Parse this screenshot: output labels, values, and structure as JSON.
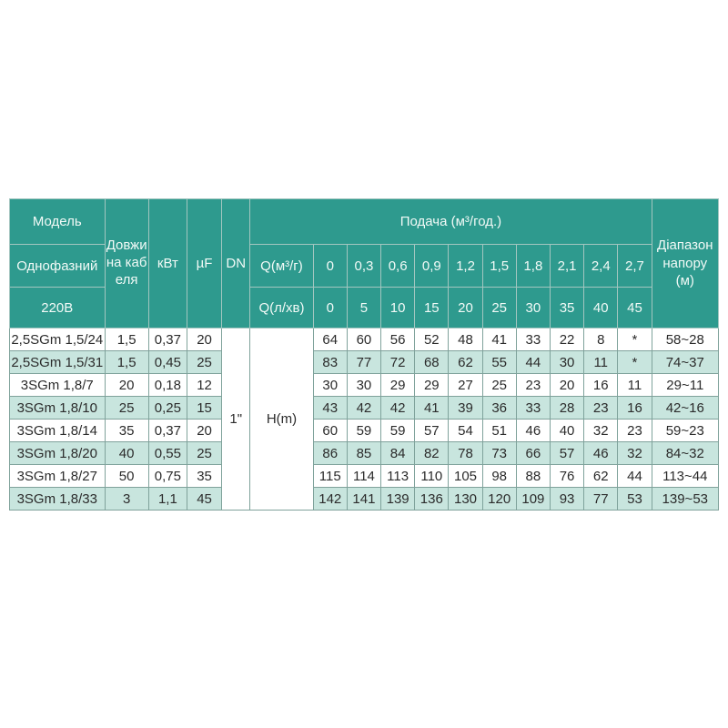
{
  "table": {
    "header": {
      "model_rows": [
        "Модель",
        "Однофазний",
        "220В"
      ],
      "cable_label": "Довжина кабеля",
      "kw_label": "кВт",
      "uf_label": "µF",
      "dn_label": "DN",
      "flow_title": "Подача (м³/год.)",
      "q_m3_label": "Q(м³/г)",
      "q_lmin_label": "Q(л/хв)",
      "q_m3_values": [
        "0",
        "0,3",
        "0,6",
        "0,9",
        "1,2",
        "1,5",
        "1,8",
        "2,1",
        "2,4",
        "2,7"
      ],
      "q_lmin_values": [
        "0",
        "5",
        "10",
        "15",
        "20",
        "25",
        "30",
        "35",
        "40",
        "45"
      ],
      "range_label": "Діапазон напору (м)"
    },
    "dn_value": "1\"",
    "hm_label": "H(m)",
    "rows": [
      {
        "model": "2,5SGm 1,5/24",
        "cable": "1,5",
        "kw": "0,37",
        "uf": "20",
        "values": [
          "64",
          "60",
          "56",
          "52",
          "48",
          "41",
          "33",
          "22",
          "8",
          "*"
        ],
        "range": "58~28"
      },
      {
        "model": "2,5SGm 1,5/31",
        "cable": "1,5",
        "kw": "0,45",
        "uf": "25",
        "values": [
          "83",
          "77",
          "72",
          "68",
          "62",
          "55",
          "44",
          "30",
          "11",
          "*"
        ],
        "range": "74~37"
      },
      {
        "model": "3SGm 1,8/7",
        "cable": "20",
        "kw": "0,18",
        "uf": "12",
        "values": [
          "30",
          "30",
          "29",
          "29",
          "27",
          "25",
          "23",
          "20",
          "16",
          "11"
        ],
        "range": "29~11"
      },
      {
        "model": "3SGm 1,8/10",
        "cable": "25",
        "kw": "0,25",
        "uf": "15",
        "values": [
          "43",
          "42",
          "42",
          "41",
          "39",
          "36",
          "33",
          "28",
          "23",
          "16"
        ],
        "range": "42~16"
      },
      {
        "model": "3SGm 1,8/14",
        "cable": "35",
        "kw": "0,37",
        "uf": "20",
        "values": [
          "60",
          "59",
          "59",
          "57",
          "54",
          "51",
          "46",
          "40",
          "32",
          "23"
        ],
        "range": "59~23"
      },
      {
        "model": "3SGm 1,8/20",
        "cable": "40",
        "kw": "0,55",
        "uf": "25",
        "values": [
          "86",
          "85",
          "84",
          "82",
          "78",
          "73",
          "66",
          "57",
          "46",
          "32"
        ],
        "range": "84~32"
      },
      {
        "model": "3SGm 1,8/27",
        "cable": "50",
        "kw": "0,75",
        "uf": "35",
        "values": [
          "115",
          "114",
          "113",
          "110",
          "105",
          "98",
          "88",
          "76",
          "62",
          "44"
        ],
        "range": "113~44"
      },
      {
        "model": "3SGm 1,8/33",
        "cable": "3",
        "kw": "1,1",
        "uf": "45",
        "values": [
          "142",
          "141",
          "139",
          "136",
          "130",
          "120",
          "109",
          "93",
          "77",
          "53"
        ],
        "range": "139~53"
      }
    ],
    "colors": {
      "header_bg": "#2e9a8e",
      "header_text": "#f2faf7",
      "row_bg": "#ffffff",
      "row_alt_bg": "#c8e5de",
      "body_border": "#7fa29b",
      "header_border": "#a3c6c0"
    }
  }
}
